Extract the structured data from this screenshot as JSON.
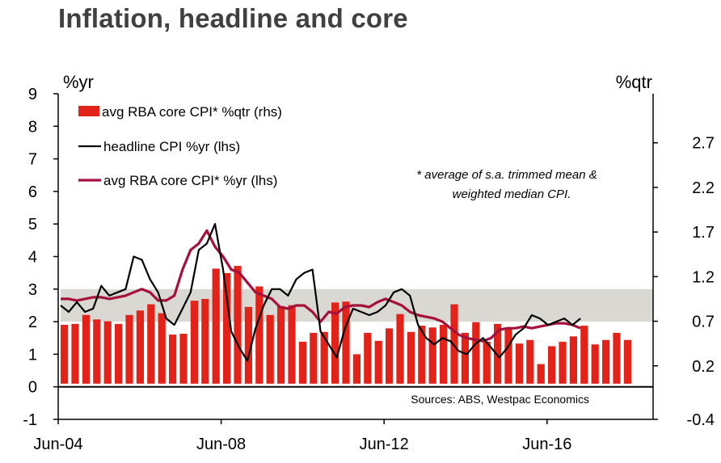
{
  "title": "Inflation, headline and core",
  "chart_data": {
    "type": "bar+line",
    "title": "Inflation, headline and core",
    "left_axis": {
      "unit": "%yr",
      "range": [
        -1,
        9
      ],
      "ticks": [
        "-1",
        "0",
        "1",
        "2",
        "3",
        "4",
        "5",
        "6",
        "7",
        "8",
        "9"
      ]
    },
    "right_axis": {
      "unit": "%qtr",
      "range": [
        -0.4,
        3.25
      ],
      "ticks": [
        "-0.4",
        "0.2",
        "0.7",
        "1.2",
        "1.7",
        "2.2",
        "2.7"
      ]
    },
    "x_ticks": [
      "Jun-04",
      "Jun-08",
      "Jun-12",
      "Jun-16"
    ],
    "x_start": "Jun-04",
    "rba_band": {
      "low": 2,
      "high": 3
    },
    "legend": [
      "avg RBA core CPI* %qtr (rhs)",
      "headline CPI %yr (lhs)",
      "avg RBA core CPI* %yr (lhs)"
    ],
    "note": [
      "* average of s.a. trimmed mean &",
      "weighted median CPI."
    ],
    "source": "Sources: ABS, Westpac Economics",
    "series": [
      {
        "name": "avg RBA core CPI* %qtr (rhs)",
        "axis": "right",
        "type": "bar",
        "color": "#E2231A",
        "values": [
          0.66,
          0.67,
          0.77,
          0.72,
          0.7,
          0.67,
          0.77,
          0.82,
          0.89,
          0.79,
          0.55,
          0.56,
          0.93,
          0.95,
          1.29,
          1.24,
          1.32,
          0.86,
          1.09,
          0.77,
          0.87,
          0.88,
          0.47,
          0.57,
          0.58,
          0.91,
          0.92,
          0.33,
          0.57,
          0.48,
          0.62,
          0.78,
          0.58,
          0.65,
          0.63,
          0.66,
          0.89,
          0.57,
          0.69,
          0.47,
          0.67,
          0.63,
          0.45,
          0.49,
          0.22,
          0.42,
          0.47,
          0.53,
          0.65,
          0.44,
          0.49,
          0.57,
          0.49
        ]
      },
      {
        "name": "headline CPI %yr (lhs)",
        "axis": "left",
        "type": "line",
        "color": "#000000",
        "values": [
          2.5,
          2.3,
          2.6,
          2.3,
          2.4,
          3.1,
          2.8,
          2.9,
          3.0,
          4.0,
          3.9,
          3.3,
          2.9,
          2.1,
          1.9,
          2.4,
          2.9,
          4.2,
          4.4,
          5.0,
          3.6,
          1.7,
          1.2,
          0.8,
          1.8,
          2.5,
          3.0,
          3.0,
          2.8,
          3.3,
          3.5,
          3.6,
          1.7,
          1.3,
          0.9,
          1.8,
          2.4,
          2.3,
          2.2,
          2.3,
          2.5,
          2.9,
          3.0,
          2.8,
          1.9,
          1.5,
          1.3,
          1.5,
          1.4,
          1.1,
          1.0,
          1.3,
          1.5,
          1.2,
          0.9,
          1.2,
          1.6,
          1.8,
          2.2,
          2.1,
          1.9,
          2.0,
          2.1,
          1.9,
          2.1
        ]
      },
      {
        "name": "avg RBA core CPI* %yr (lhs)",
        "axis": "left",
        "type": "line",
        "color": "#A6113C",
        "values": [
          2.7,
          2.7,
          2.65,
          2.7,
          2.75,
          2.75,
          2.7,
          2.75,
          2.8,
          2.9,
          3.0,
          2.9,
          2.65,
          2.65,
          2.8,
          3.6,
          4.2,
          4.4,
          4.8,
          4.3,
          4.0,
          3.6,
          3.5,
          3.2,
          2.9,
          2.8,
          2.7,
          2.45,
          2.4,
          2.5,
          2.5,
          2.3,
          2.0,
          2.3,
          2.25,
          2.45,
          2.5,
          2.5,
          2.45,
          2.6,
          2.7,
          2.6,
          2.5,
          2.3,
          2.2,
          2.15,
          2.1,
          2.0,
          1.8,
          1.6,
          1.5,
          1.45,
          1.4,
          1.5,
          1.75,
          1.8,
          1.8,
          1.85,
          1.8,
          1.85,
          1.9,
          1.95,
          1.95,
          1.9,
          1.8
        ]
      }
    ]
  }
}
